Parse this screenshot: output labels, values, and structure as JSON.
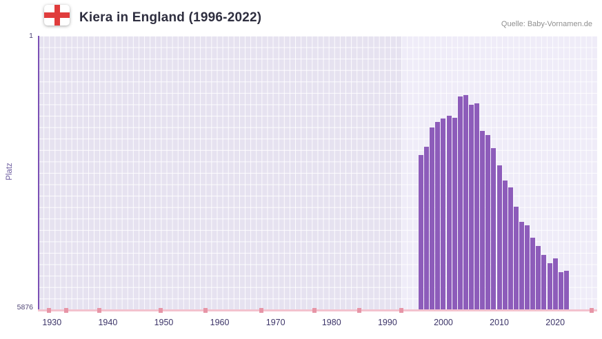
{
  "header": {
    "title": "Kiera in England (1996-2022)",
    "source": "Quelle: Baby-Vornamen.de"
  },
  "y_axis": {
    "label": "Platz",
    "top": "1",
    "bottom": "5876"
  },
  "chart_data": {
    "type": "bar",
    "title": "Kiera in England (1996-2022)",
    "xlabel": "",
    "ylabel": "Platz",
    "y_domain": [
      1,
      5876
    ],
    "y_inverted": true,
    "x_domain": [
      1927.5,
      2027.5
    ],
    "x_tick_years": [
      1930,
      1940,
      1950,
      1960,
      1970,
      1980,
      1990,
      2000,
      2010,
      2020
    ],
    "grid": true,
    "highlight_region": {
      "start": 1992.5,
      "end": 2027.5
    },
    "series": [
      {
        "name": "Platz",
        "years": [
          1996,
          1997,
          1998,
          1999,
          2000,
          2001,
          2002,
          2003,
          2004,
          2005,
          2006,
          2007,
          2008,
          2009,
          2010,
          2011,
          2012,
          2013,
          2014,
          2015,
          2016,
          2017,
          2018,
          2019,
          2020,
          2021,
          2022
        ],
        "ranks": [
          2560,
          2380,
          1960,
          1850,
          1770,
          1710,
          1760,
          1300,
          1270,
          1480,
          1450,
          2040,
          2130,
          2410,
          2780,
          3100,
          3250,
          3660,
          3990,
          4060,
          4330,
          4500,
          4700,
          4870,
          4770,
          5070,
          5040
        ]
      }
    ],
    "axis_marker_years": [
      1929.5,
      1932.5,
      1938.5,
      1949.5,
      1957.5,
      1967.5,
      1977,
      1985,
      1992.5,
      2026.5
    ],
    "colors": {
      "bar": "#8d5cba",
      "plot_bg": "#e6e2f0",
      "highlight_bg": "#efecf8",
      "grid_line": "#ffffff",
      "y_axis_line": "#7b50b5",
      "x_axis_line": "#f3c2ce",
      "axis_marker": "#e795a6",
      "title_text": "#2e2e3f",
      "source_text": "#8f8f8f",
      "y_label_text": "#6b5b9e",
      "y_tick_text": "#4e4374",
      "x_tick_text": "#3c3468",
      "flag_cross": "#e03c3c"
    }
  }
}
